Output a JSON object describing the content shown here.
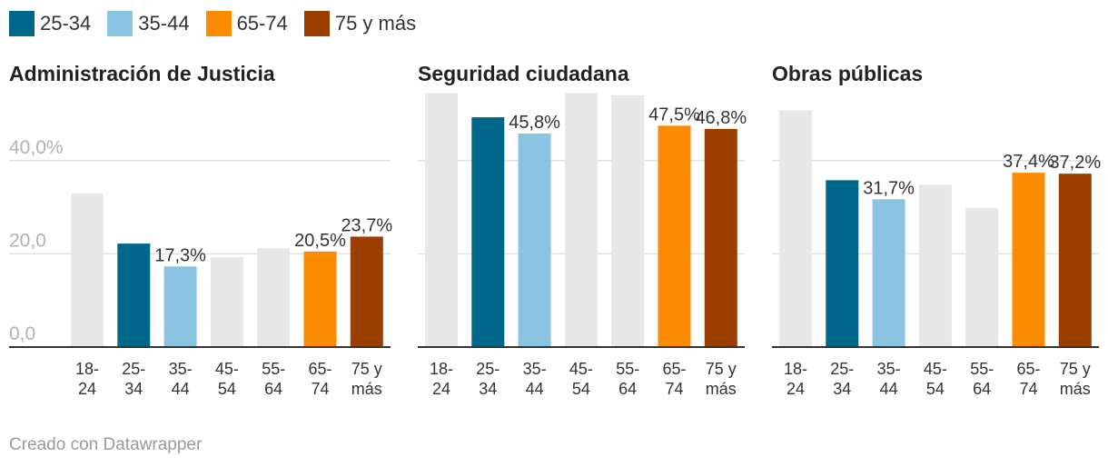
{
  "legend": [
    {
      "label": "25-34",
      "color": "#00668a"
    },
    {
      "label": "35-44",
      "color": "#8ac4e2"
    },
    {
      "label": "65-74",
      "color": "#fb8b01"
    },
    {
      "label": "75 y más",
      "color": "#9a3f00"
    }
  ],
  "colors": {
    "18-24": "#e8e8e8",
    "25-34": "#00668a",
    "35-44": "#8ac4e2",
    "45-54": "#e8e8e8",
    "55-64": "#e8e8e8",
    "65-74": "#fb8b01",
    "75 y más": "#9a3f00"
  },
  "chart_data": [
    {
      "type": "bar",
      "title": "Administración de Justicia",
      "categories": [
        "18-24",
        "25-34",
        "35-44",
        "45-54",
        "55-64",
        "65-74",
        "75 y más"
      ],
      "values": [
        33.0,
        22.2,
        17.3,
        19.3,
        21.2,
        20.5,
        23.7
      ],
      "value_labels": [
        "",
        "",
        "17,3%",
        "",
        "",
        "20,5%",
        "23,7%"
      ],
      "ylim": [
        0,
        50
      ],
      "yticks": [
        0,
        20,
        40
      ],
      "ytick_labels": [
        "0,0",
        "20,0",
        "40,0%"
      ]
    },
    {
      "type": "bar",
      "title": "Seguridad ciudadana",
      "categories": [
        "18-24",
        "25-34",
        "35-44",
        "45-54",
        "55-64",
        "65-74",
        "75 y más"
      ],
      "values": [
        54.5,
        49.3,
        45.8,
        54.5,
        54.0,
        47.5,
        46.8
      ],
      "value_labels": [
        "",
        "",
        "45,8%",
        "",
        "",
        "47,5%",
        "46,8%"
      ],
      "ylim": [
        0,
        50
      ],
      "yticks": [
        0,
        20,
        40
      ],
      "ytick_labels": [
        "",
        "",
        ""
      ]
    },
    {
      "type": "bar",
      "title": "Obras públicas",
      "categories": [
        "18-24",
        "25-34",
        "35-44",
        "45-54",
        "55-64",
        "65-74",
        "75 y más"
      ],
      "values": [
        50.8,
        35.8,
        31.7,
        34.8,
        29.9,
        37.4,
        37.2
      ],
      "value_labels": [
        "",
        "",
        "31,7%",
        "",
        "",
        "37,4%",
        "37,2%"
      ],
      "ylim": [
        0,
        50
      ],
      "yticks": [
        0,
        20,
        40
      ],
      "ytick_labels": [
        "",
        "",
        ""
      ]
    }
  ],
  "footer": "Creado con Datawrapper"
}
